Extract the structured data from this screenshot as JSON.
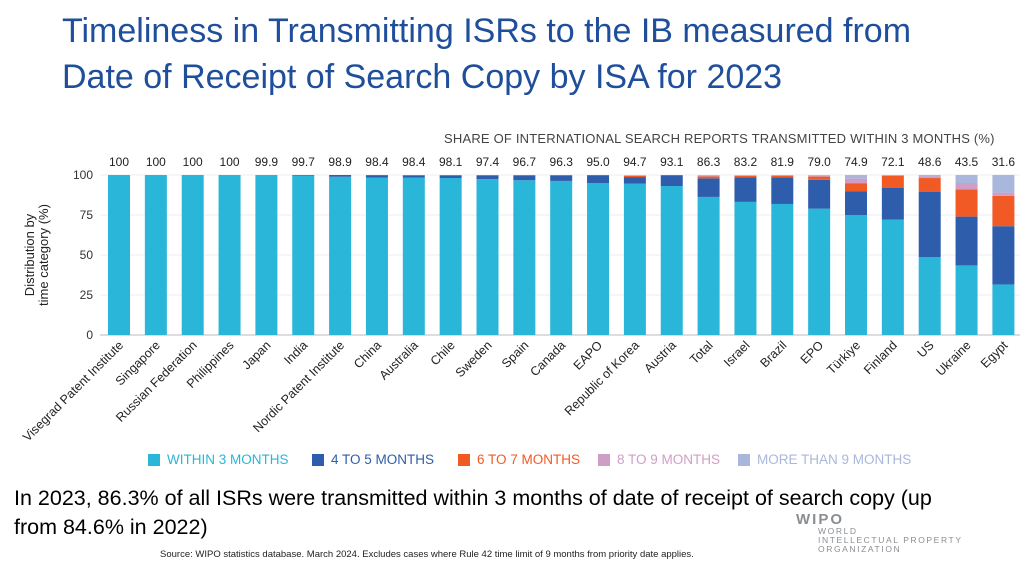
{
  "title": "Timeliness in Transmitting ISRs to the IB measured from Date of Receipt of Search Copy by ISA for 2023",
  "summary": "In 2023, 86.3% of all ISRs were transmitted within 3 months of date of receipt of search copy (up from 84.6% in 2022)",
  "source": "Source:  WIPO statistics database. March 2024.  Excludes cases where Rule 42 time limit of 9 months from priority date applies.",
  "logo": {
    "word": "WIPO",
    "line1": "WORLD",
    "line2": "INTELLECTUAL PROPERTY",
    "line3": "ORGANIZATION"
  },
  "colors": {
    "within3": "#29b6d9",
    "m4to5": "#2e5dab",
    "m6to7": "#f15a24",
    "m8to9": "#cf9ec7",
    "more9": "#a9b7dc",
    "title": "#1f4e9b"
  },
  "chart_data": {
    "type": "bar",
    "stacked": true,
    "title": "SHARE OF INTERNATIONAL SEARCH REPORTS TRANSMITTED WITHIN 3 MONTHS (%)",
    "ylabel": "Distribution by time category (%)",
    "ylim": [
      0,
      100
    ],
    "yticks": [
      0,
      25,
      50,
      75,
      100
    ],
    "legend_position": "bottom",
    "categories": [
      "Visegrad Patent Institute",
      "Singapore",
      "Russian Federation",
      "Philippines",
      "Japan",
      "India",
      "Nordic Patent Institute",
      "China",
      "Australia",
      "Chile",
      "Sweden",
      "Spain",
      "Canada",
      "EAPO",
      "Republic of Korea",
      "Austria",
      "Total",
      "Israel",
      "Brazil",
      "EPO",
      "Türkiye",
      "Finland",
      "US",
      "Ukraine",
      "Egypt"
    ],
    "top_labels": [
      "100",
      "100",
      "100",
      "100",
      "99.9",
      "99.7",
      "98.9",
      "98.4",
      "98.4",
      "98.1",
      "97.4",
      "96.7",
      "96.3",
      "95.0",
      "94.7",
      "93.1",
      "86.3",
      "83.2",
      "81.9",
      "79.0",
      "74.9",
      "72.1",
      "48.6",
      "43.5",
      "31.6"
    ],
    "series": [
      {
        "name": "WITHIN 3 MONTHS",
        "color": "#29b6d9",
        "values": [
          100,
          100,
          100,
          100,
          99.9,
          99.7,
          98.9,
          98.4,
          98.4,
          98.1,
          97.4,
          96.7,
          96.3,
          95.0,
          94.7,
          93.1,
          86.3,
          83.2,
          81.9,
          79.0,
          74.9,
          72.1,
          48.6,
          43.5,
          31.6
        ]
      },
      {
        "name": "4 TO 5 MONTHS",
        "color": "#2e5dab",
        "values": [
          0,
          0,
          0,
          0,
          0.1,
          0.3,
          1.1,
          1.5,
          1.4,
          1.6,
          2.4,
          3.0,
          3.4,
          4.8,
          4.0,
          6.7,
          11.6,
          15.3,
          16.7,
          18.0,
          15.0,
          20.0,
          41.0,
          30.5,
          36.4
        ]
      },
      {
        "name": "6 TO 7 MONTHS",
        "color": "#f15a24",
        "values": [
          0,
          0,
          0,
          0,
          0,
          0,
          0,
          0.1,
          0.1,
          0.2,
          0.1,
          0.2,
          0.2,
          0.2,
          0.8,
          0.2,
          1.2,
          1.0,
          1.0,
          2.0,
          5.0,
          7.5,
          8.5,
          17.0,
          19.0
        ]
      },
      {
        "name": "8 TO 9 MONTHS",
        "color": "#cf9ec7",
        "values": [
          0,
          0,
          0,
          0,
          0,
          0,
          0,
          0,
          0.1,
          0.1,
          0.1,
          0.1,
          0.1,
          0,
          0.3,
          0,
          0.5,
          0.3,
          0.3,
          0.6,
          3.0,
          0.3,
          1.0,
          4.0,
          2.0
        ]
      },
      {
        "name": "MORE THAN 9 MONTHS",
        "color": "#a9b7dc",
        "values": [
          0,
          0,
          0,
          0,
          0,
          0,
          0,
          0,
          0,
          0,
          0,
          0,
          0,
          0,
          0.2,
          0,
          0.4,
          0.2,
          0.1,
          0.4,
          2.1,
          0.1,
          0.9,
          5.0,
          11.0
        ]
      }
    ]
  }
}
